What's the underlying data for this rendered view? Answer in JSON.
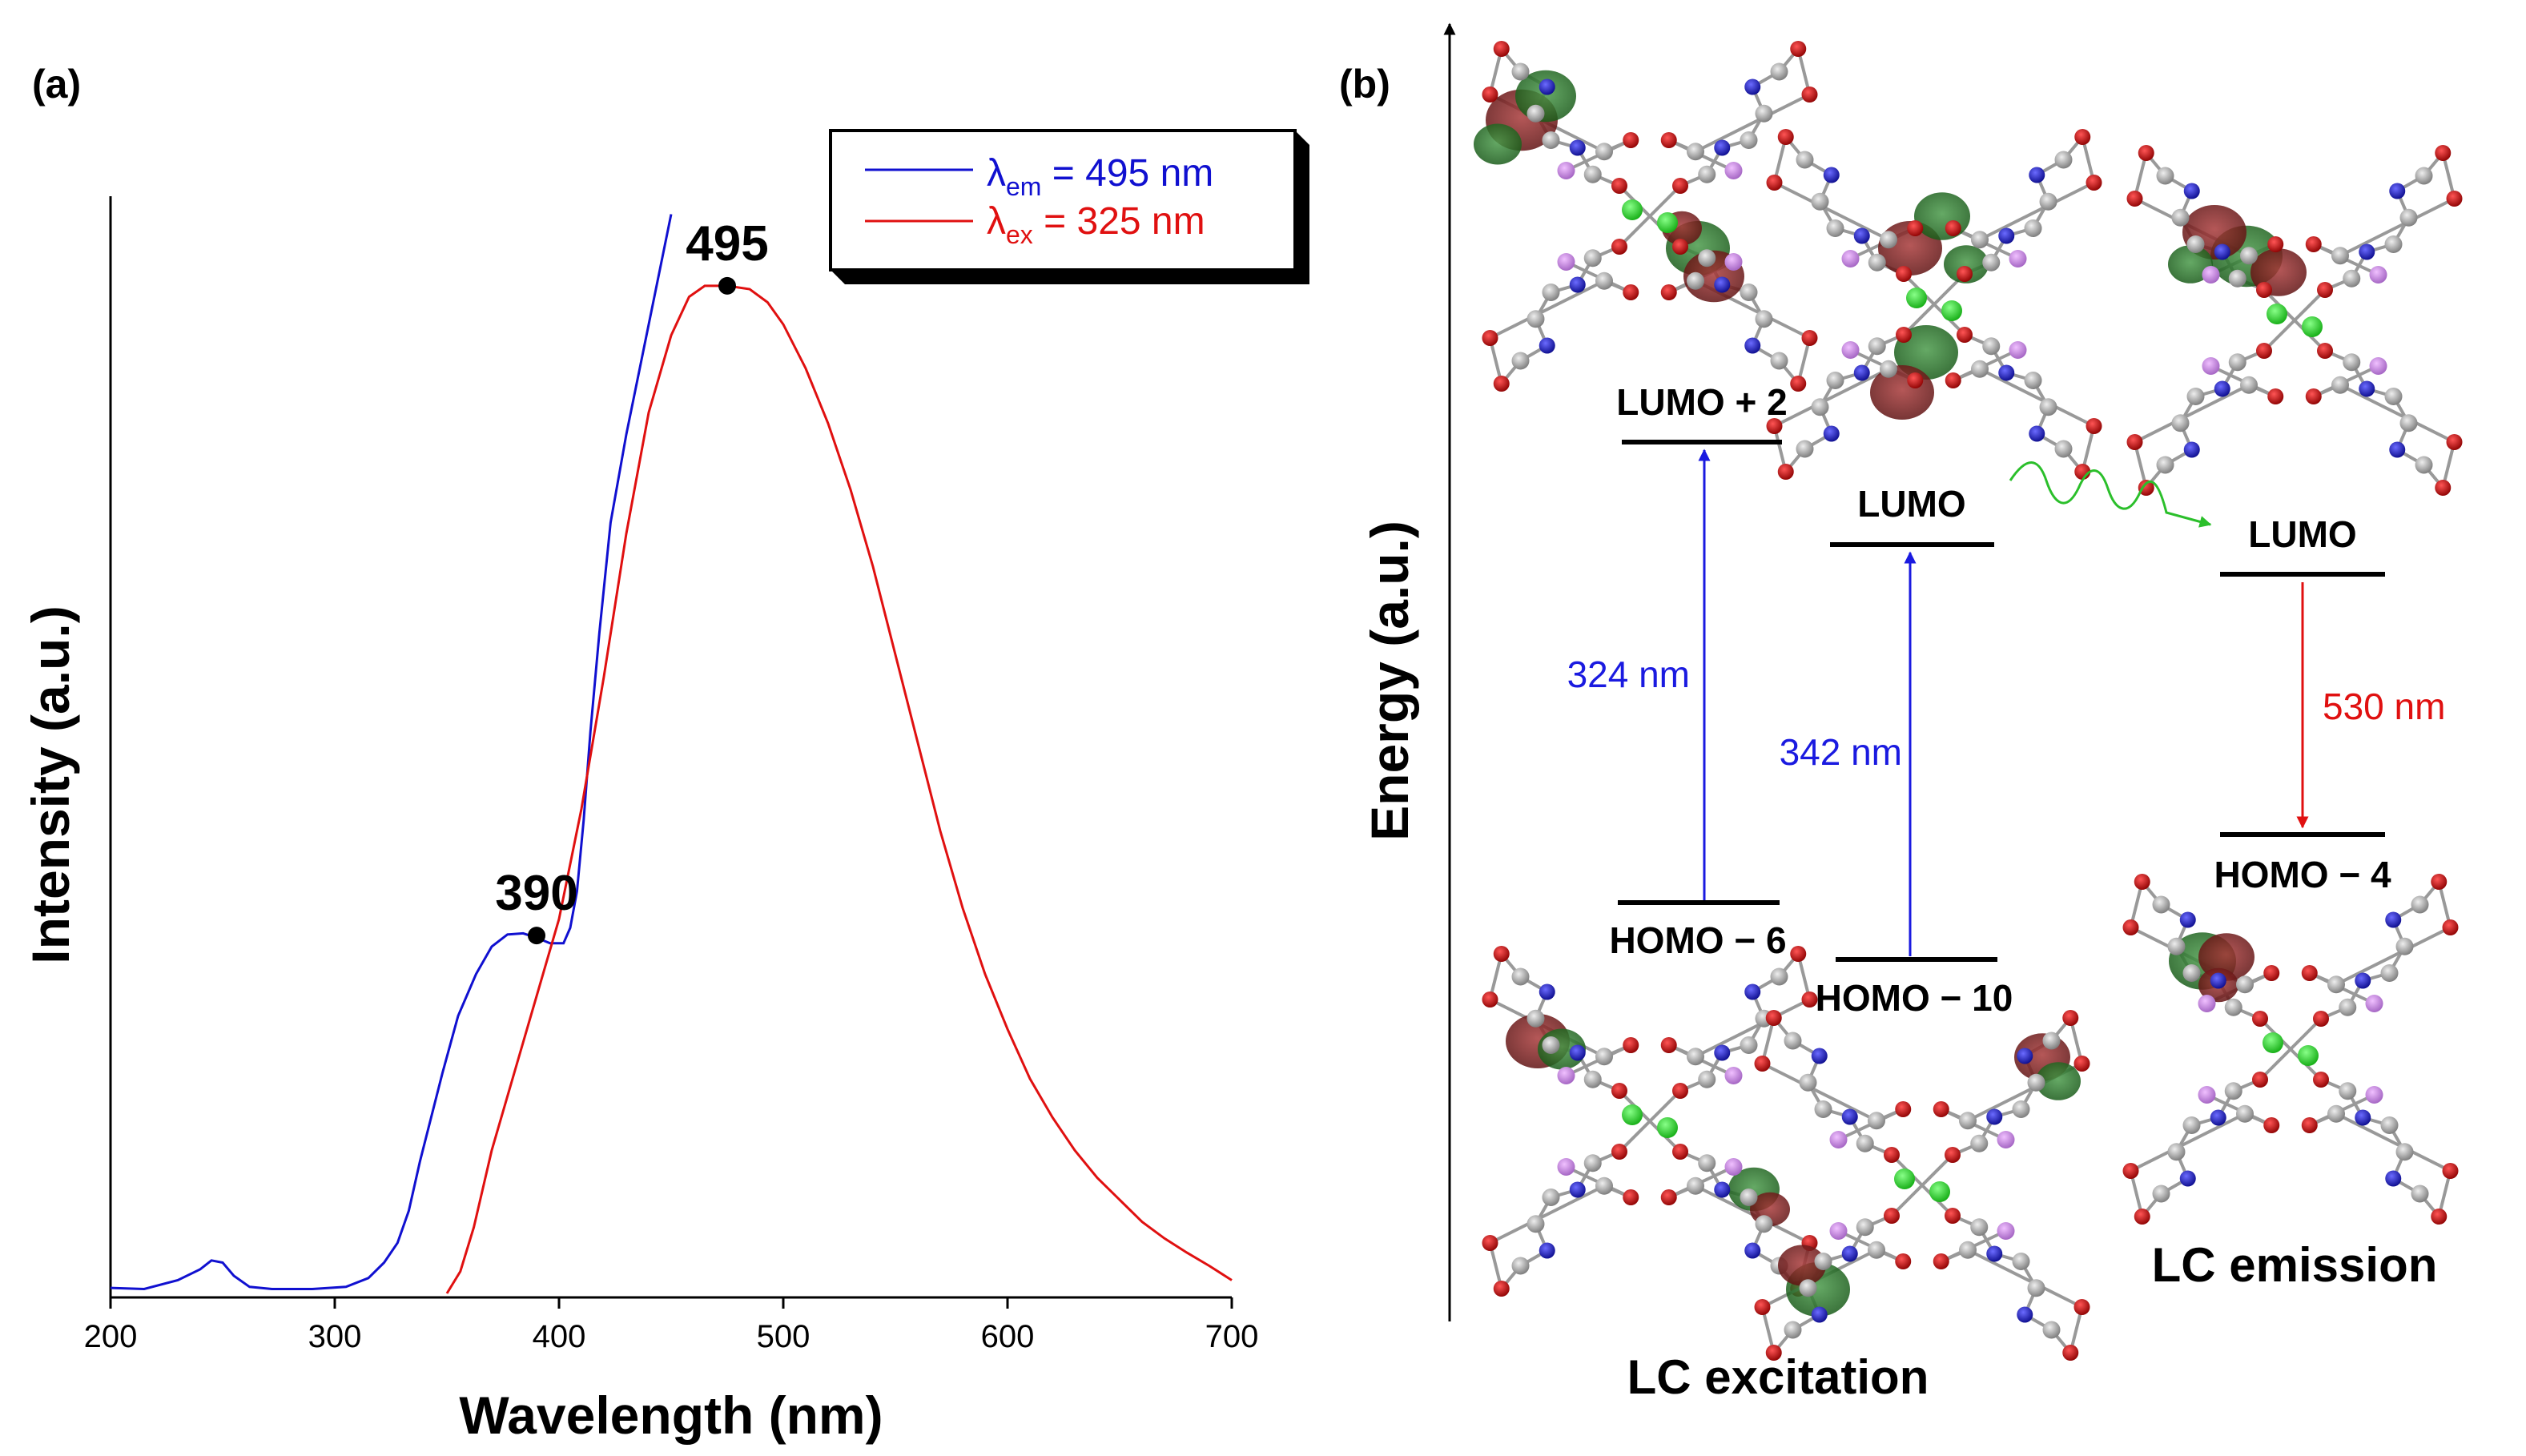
{
  "chart_data": [
    {
      "type": "line",
      "panel_label": "(a)",
      "xlabel": "Wavelength (nm)",
      "ylabel": "Intensity (a.u.)",
      "xlim": [
        200,
        700
      ],
      "xticks": [
        200,
        300,
        400,
        500,
        600,
        700
      ],
      "ylim": [
        0,
        1.0
      ],
      "yticks_shown": false,
      "grid": false,
      "legend_position": "top-right",
      "series": [
        {
          "name": "λem = 495 nm",
          "legend_symbol": "λ",
          "legend_sub": "em",
          "legend_rest": " = 495 nm",
          "color": "#1010d0",
          "x": [
            200,
            215,
            230,
            240,
            245,
            250,
            255,
            262,
            272,
            290,
            305,
            315,
            322,
            328,
            333,
            338,
            343,
            348,
            355,
            363,
            370,
            377,
            384,
            390,
            396,
            402,
            405,
            408,
            411,
            414,
            418,
            423,
            430,
            437,
            445,
            450
          ],
          "y": [
            0.005,
            0.004,
            0.012,
            0.022,
            0.03,
            0.028,
            0.016,
            0.006,
            0.004,
            0.004,
            0.006,
            0.014,
            0.028,
            0.046,
            0.075,
            0.12,
            0.16,
            0.2,
            0.252,
            0.29,
            0.315,
            0.326,
            0.327,
            0.323,
            0.318,
            0.318,
            0.332,
            0.365,
            0.43,
            0.51,
            0.6,
            0.7,
            0.78,
            0.85,
            0.93,
            0.98
          ]
        },
        {
          "name": "λex = 325 nm",
          "legend_symbol": "λ",
          "legend_sub": "ex",
          "legend_rest": " = 325 nm",
          "color": "#e01010",
          "x": [
            350,
            356,
            362,
            370,
            380,
            390,
            400,
            410,
            420,
            430,
            440,
            450,
            458,
            465,
            475,
            485,
            493,
            500,
            510,
            520,
            530,
            540,
            550,
            560,
            570,
            580,
            590,
            600,
            610,
            620,
            630,
            640,
            650,
            660,
            670,
            680,
            690,
            700
          ],
          "y": [
            0.0,
            0.02,
            0.06,
            0.13,
            0.2,
            0.27,
            0.34,
            0.44,
            0.56,
            0.69,
            0.8,
            0.87,
            0.905,
            0.915,
            0.915,
            0.912,
            0.9,
            0.88,
            0.84,
            0.79,
            0.73,
            0.66,
            0.58,
            0.5,
            0.42,
            0.35,
            0.29,
            0.24,
            0.195,
            0.16,
            0.13,
            0.105,
            0.085,
            0.065,
            0.05,
            0.037,
            0.025,
            0.012
          ]
        }
      ],
      "annotations": [
        {
          "text": "390",
          "x": 390,
          "y": 0.325
        },
        {
          "text": "495",
          "x": 475,
          "y": 0.915
        }
      ]
    },
    {
      "type": "diagram",
      "panel_label": "(b)",
      "ylabel": "Energy (a.u.)",
      "levels": [
        {
          "id": "lumo2",
          "label": "LUMO + 2"
        },
        {
          "id": "lumo_a",
          "label": "LUMO"
        },
        {
          "id": "homo6",
          "label": "HOMO − 6"
        },
        {
          "id": "homo10",
          "label": "HOMO − 10"
        },
        {
          "id": "lumo_b",
          "label": "LUMO"
        },
        {
          "id": "homo4",
          "label": "HOMO − 4"
        }
      ],
      "transitions": [
        {
          "from": "HOMO − 6",
          "to": "LUMO + 2",
          "label": "324 nm",
          "color": "#1a1ae0"
        },
        {
          "from": "HOMO − 10",
          "to": "LUMO",
          "label": "342 nm",
          "color": "#1a1ae0"
        },
        {
          "from": "LUMO",
          "to": "HOMO − 4",
          "label": "530 nm",
          "color": "#e01010"
        }
      ],
      "relaxation_color": "#2bbf2b",
      "captions": {
        "excitation": "LC excitation",
        "emission": "LC emission"
      }
    }
  ]
}
